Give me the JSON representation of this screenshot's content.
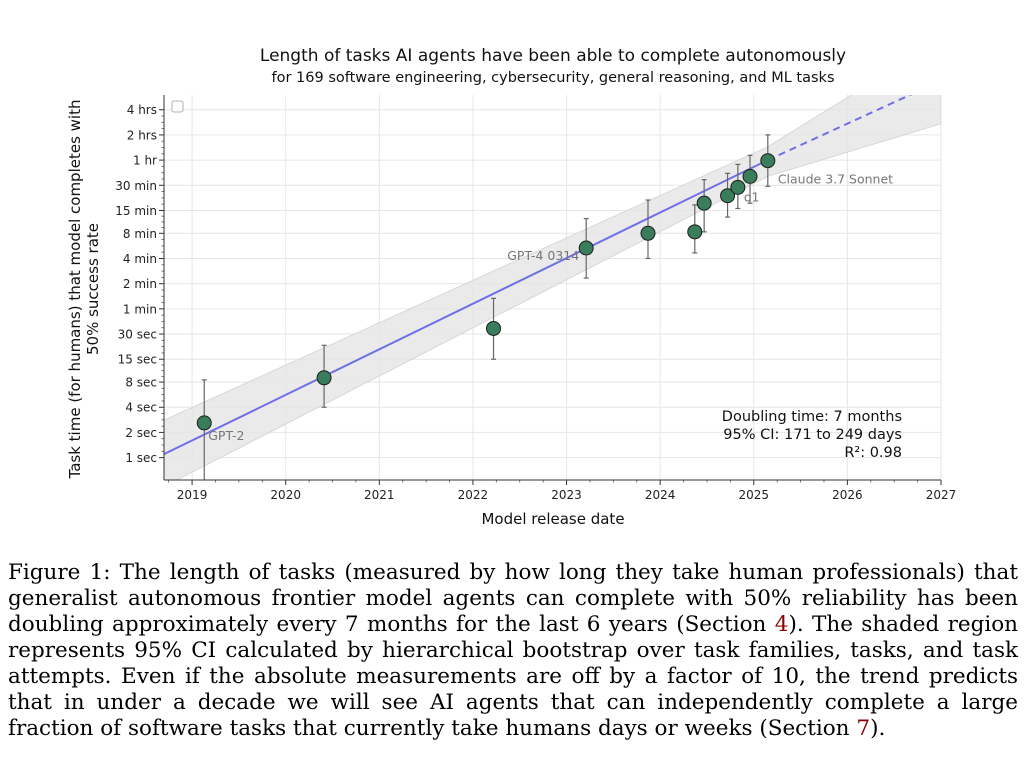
{
  "chart_data": {
    "type": "scatter",
    "title": "Length of tasks AI agents have been able to complete autonomously",
    "subtitle": "for 169 software engineering, cybersecurity, general reasoning, and ML tasks",
    "xlabel": "Model release date",
    "ylabel": "Task time (for humans) that model completes with 50% success rate",
    "ylabel_lines": [
      "Task time (for humans) that model completes with",
      "50% success rate"
    ],
    "xlim": [
      2018.7,
      2027.0
    ],
    "x_ticks": [
      2019,
      2020,
      2021,
      2022,
      2023,
      2024,
      2025,
      2026,
      2027
    ],
    "x_tick_labels": [
      "2019",
      "2020",
      "2021",
      "2022",
      "2023",
      "2024",
      "2025",
      "2026",
      "2027"
    ],
    "y_scale": "log2",
    "y_unit": "seconds",
    "ylim_seconds": [
      0.54,
      21600
    ],
    "y_ticks_seconds": [
      1,
      2,
      4,
      8,
      15,
      30,
      60,
      120,
      240,
      480,
      900,
      1800,
      3600,
      7200,
      14400
    ],
    "y_tick_labels": [
      "1 sec",
      "2 sec",
      "4 sec",
      "8 sec",
      "15 sec",
      "30 sec",
      "1 min",
      "2 min",
      "4 min",
      "8 min",
      "15 min",
      "30 min",
      "1 hr",
      "2 hrs",
      "4 hrs"
    ],
    "grid": true,
    "marker_color": "#3a7d5b",
    "trend_color": "#6f6fe8",
    "band_color": "#e5e5e5",
    "points": [
      {
        "date": 2019.13,
        "seconds": 2.6,
        "low": 0.5,
        "high": 8.5,
        "label": "GPT-2"
      },
      {
        "date": 2020.41,
        "seconds": 9,
        "low": 4,
        "high": 22
      },
      {
        "date": 2022.22,
        "seconds": 35,
        "low": 15,
        "high": 80
      },
      {
        "date": 2023.21,
        "seconds": 320,
        "low": 140,
        "high": 720,
        "label": "GPT-4 0314"
      },
      {
        "date": 2023.87,
        "seconds": 480,
        "low": 240,
        "high": 1200
      },
      {
        "date": 2024.37,
        "seconds": 500,
        "low": 280,
        "high": 1050
      },
      {
        "date": 2024.47,
        "seconds": 1100,
        "low": 500,
        "high": 2100
      },
      {
        "date": 2024.72,
        "seconds": 1350,
        "low": 750,
        "high": 2500
      },
      {
        "date": 2024.83,
        "seconds": 1700,
        "low": 950,
        "high": 3200,
        "label": "o1"
      },
      {
        "date": 2024.96,
        "seconds": 2300,
        "low": 1100,
        "high": 4100
      },
      {
        "date": 2025.15,
        "seconds": 3540,
        "low": 1750,
        "high": 7200,
        "label": "Claude 3.7 Sonnet"
      }
    ],
    "trend": {
      "solid_from": [
        2018.7,
        1.1
      ],
      "solid_to": [
        2025.15,
        3600
      ],
      "dashed_to": [
        2027.0,
        32000
      ]
    },
    "ci_band": [
      {
        "date": 2018.7,
        "low": 0.45,
        "high": 2.8
      },
      {
        "date": 2025.15,
        "low": 2300,
        "high": 5200
      },
      {
        "date": 2027.0,
        "low": 9800,
        "high": 100000
      }
    ],
    "annotation_lines": [
      "Doubling time: 7 months",
      "95% CI: 171 to 249 days",
      "R²: 0.98"
    ]
  },
  "caption": {
    "label": "Figure 1:",
    "text_before_ref1": "The length of tasks (measured by how long they take human professionals) that generalist autonomous frontier model agents can complete with 50% reliability has been doubling approximately every 7 months for the last 6 years (Section",
    "ref1": "4",
    "text_between_refs": "). The shaded region represents 95% CI calculated by hierarchical bootstrap over task families, tasks, and task attempts. Even if the absolute measurements are off by a factor of 10, the trend predicts that in under a decade we will see AI agents that can independently complete a large fraction of software tasks that currently take humans days or weeks (Section",
    "ref2": "7",
    "text_after_ref2": ")."
  }
}
